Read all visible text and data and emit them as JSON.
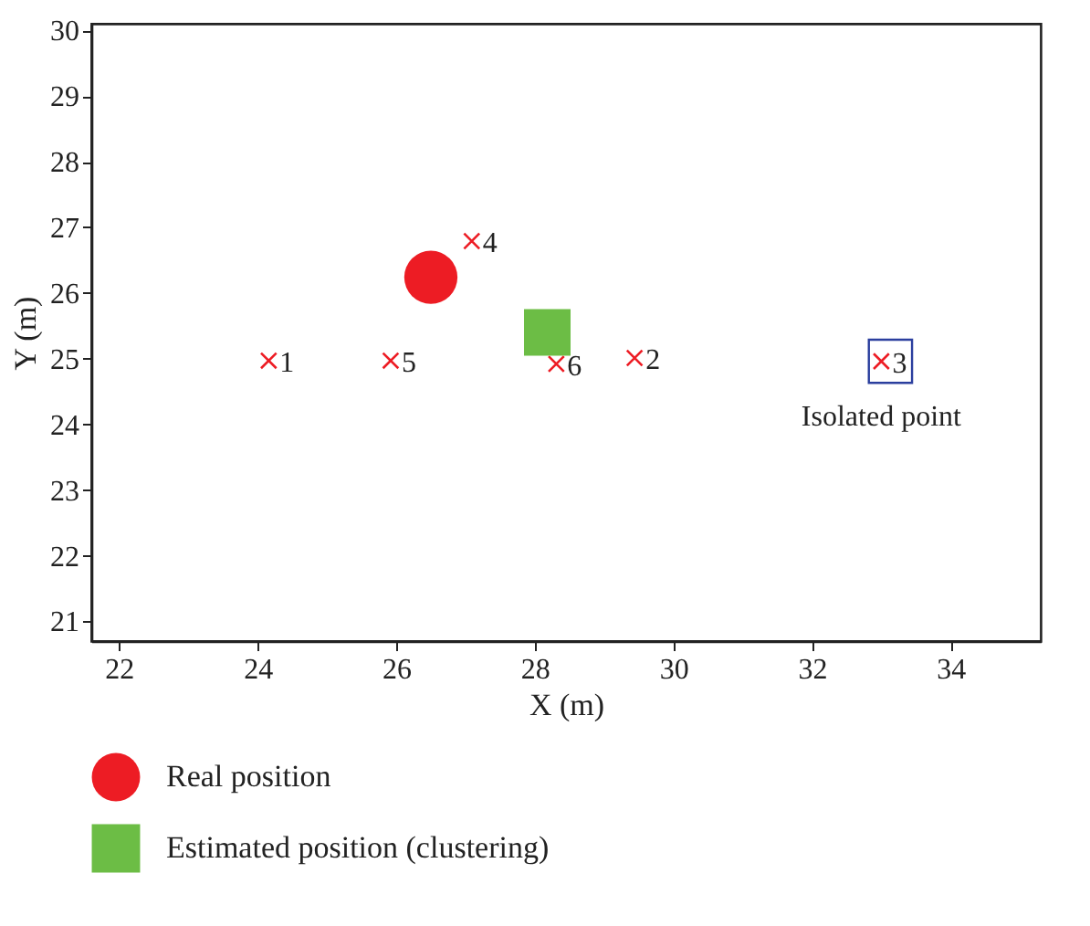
{
  "chart_data": {
    "type": "scatter",
    "xlabel": "X (m)",
    "ylabel": "Y (m)",
    "xlim": [
      21.6,
      35.3
    ],
    "ylim": [
      20.7,
      30.1
    ],
    "xticks": [
      22,
      24,
      26,
      28,
      30,
      32,
      34
    ],
    "yticks": [
      21,
      22,
      23,
      24,
      25,
      26,
      27,
      28,
      29,
      30
    ],
    "grid": false,
    "legend": "bottom",
    "series": [
      {
        "color": "#ed1c24",
        "marker": "cross",
        "x": [
          24.16,
          29.44,
          33.0,
          27.09,
          25.92,
          28.31
        ],
        "values": [
          24.97,
          25.01,
          24.96,
          26.79,
          24.97,
          24.92
        ]
      },
      {
        "name": "Real position",
        "color": "#ed1c24",
        "marker": "circle",
        "x": [
          26.5
        ],
        "values": [
          26.24
        ]
      },
      {
        "name": "Estimated position (clustering)",
        "color": "#6cbd45",
        "marker": "square",
        "x": [
          28.18
        ],
        "values": [
          25.4
        ]
      }
    ],
    "annotations": [
      {
        "text": "1",
        "x": 24.16,
        "y": 24.97
      },
      {
        "text": "2",
        "x": 29.44,
        "y": 25.01
      },
      {
        "text": "3",
        "x": 33.0,
        "y": 24.96
      },
      {
        "text": "4",
        "x": 27.09,
        "y": 26.79
      },
      {
        "text": "5",
        "x": 25.92,
        "y": 24.97
      },
      {
        "text": "6",
        "x": 28.31,
        "y": 24.92
      },
      {
        "text": "Isolated point",
        "x": 33.0,
        "y": 24.96
      }
    ]
  }
}
